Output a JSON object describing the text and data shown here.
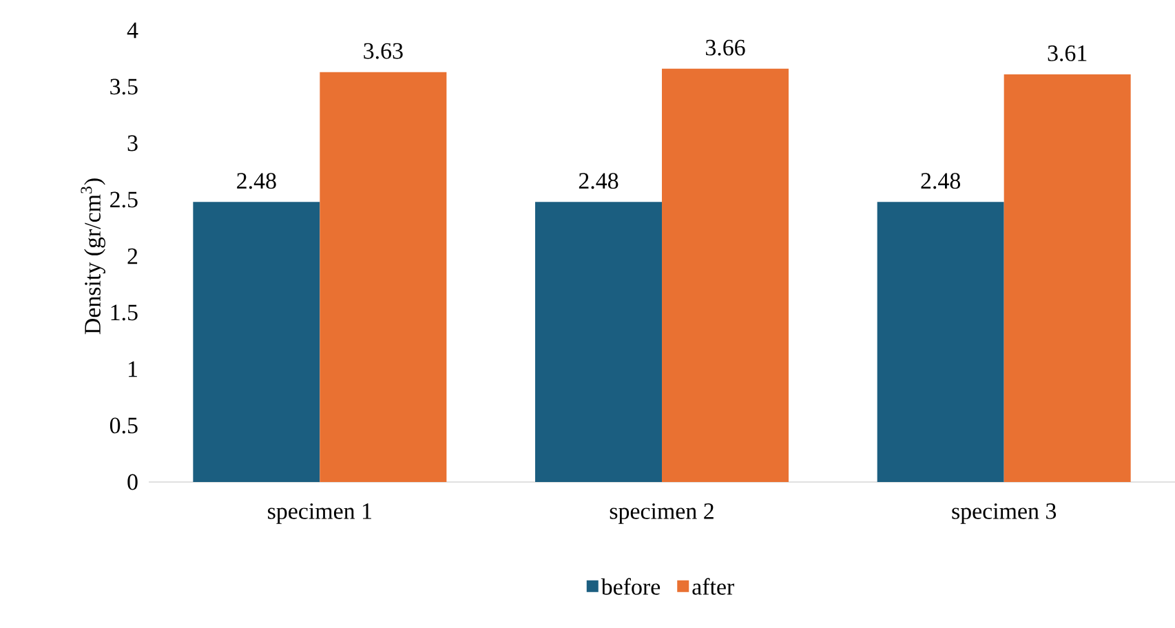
{
  "chart_data": {
    "type": "bar",
    "ylabel": "Density (gr/cm$^{3}$)",
    "categories": [
      "specimen 1",
      "specimen 2",
      "specimen 3"
    ],
    "series": [
      {
        "name": "before",
        "color": "#1b5e80",
        "values": [
          2.48,
          2.48,
          2.48
        ]
      },
      {
        "name": "after",
        "color": "#e97132",
        "values": [
          3.63,
          3.66,
          3.61
        ]
      }
    ],
    "ylim": [
      0,
      4
    ],
    "yticks": [
      0,
      0.5,
      1,
      1.5,
      2,
      2.5,
      3,
      3.5,
      4
    ],
    "data_labels": true,
    "legend": "bottom",
    "grid": false
  }
}
